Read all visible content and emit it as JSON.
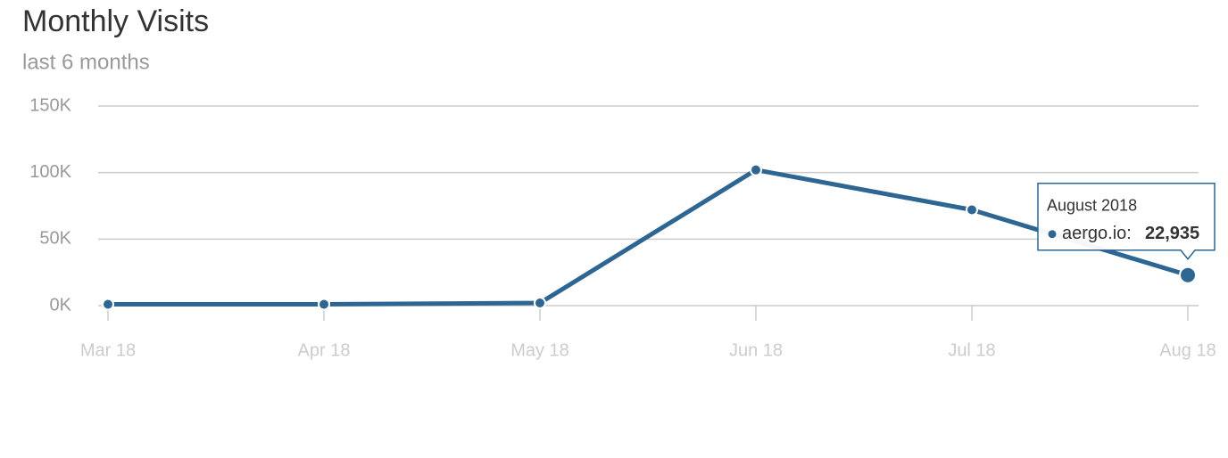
{
  "chart_data": {
    "type": "line",
    "title": "Monthly Visits",
    "subtitle": "last 6 months",
    "categories": [
      "Mar 18",
      "Apr 18",
      "May 18",
      "Jun 18",
      "Jul 18",
      "Aug 18"
    ],
    "series": [
      {
        "name": "aergo.io",
        "color": "#2d6692",
        "values": [
          1000,
          1000,
          2000,
          102000,
          72000,
          22935
        ]
      }
    ],
    "ylim": [
      0,
      150000
    ],
    "yticks": [
      {
        "value": 0,
        "label": "0K"
      },
      {
        "value": 50000,
        "label": "50K"
      },
      {
        "value": 100000,
        "label": "100K"
      },
      {
        "value": 150000,
        "label": "150K"
      }
    ],
    "grid": true,
    "tooltip": {
      "title": "August 2018",
      "label": "aergo.io:",
      "value_label": "22,935"
    }
  }
}
